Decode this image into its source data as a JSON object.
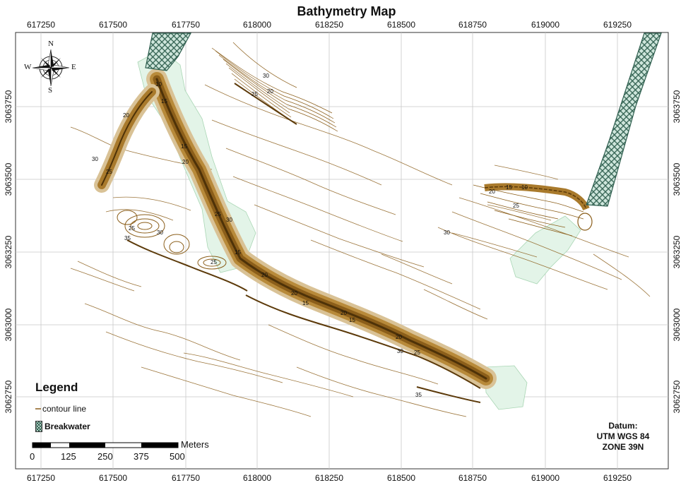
{
  "title": "Bathymetry Map",
  "x_ticks": [
    "617250",
    "617500",
    "617750",
    "618000",
    "618250",
    "618500",
    "618750",
    "619000",
    "619250"
  ],
  "y_ticks": [
    "3063750",
    "3063500",
    "3063250",
    "3063000",
    "3062750"
  ],
  "compass": {
    "n": "N",
    "s": "S",
    "e": "E",
    "w": "W"
  },
  "contour_labels": [
    "30",
    "25",
    "20",
    "15",
    "10",
    "15",
    "20",
    "25",
    "30",
    "20",
    "25",
    "30",
    "15",
    "20",
    "25",
    "35",
    "30",
    "25",
    "20",
    "15",
    "20",
    "15",
    "20",
    "25",
    "30",
    "35",
    "10",
    "15",
    "20",
    "25",
    "30"
  ],
  "legend": {
    "title": "Legend",
    "contour_label": "contour line",
    "breakwater_label": "Breakwater"
  },
  "scale_bar": {
    "unit": "Meters",
    "labels": [
      "0",
      "125",
      "250",
      "375",
      "500"
    ]
  },
  "datum": {
    "line1": "Datum:",
    "line2": "UTM WGS 84",
    "line3": "ZONE 39N"
  },
  "colors": {
    "contour": "#8b5e1a",
    "channel": "#a97a2c",
    "breakwater": "#2e5e4e",
    "shoal": "#e3f4e8",
    "grid": "#bbbbbb"
  }
}
